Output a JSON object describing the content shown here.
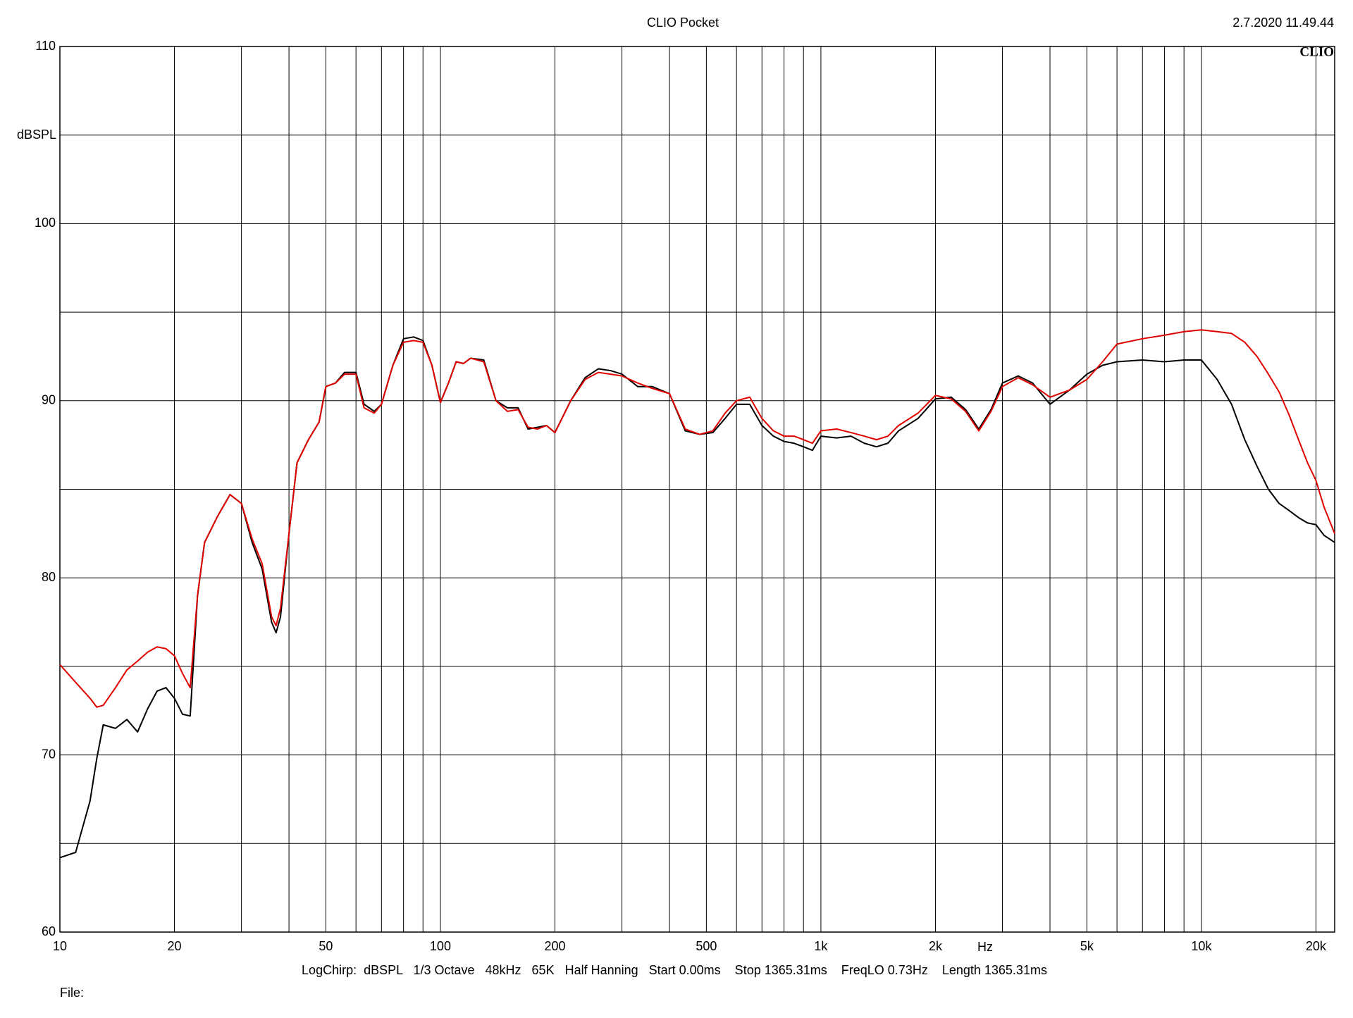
{
  "chart_data": {
    "type": "line",
    "title": "CLIO Pocket",
    "timestamp": "2.7.2020 11.49.44",
    "logo": "CLIO",
    "ylabel": "dBSPL",
    "xlabel": "Hz",
    "footer": "LogChirp:  dBSPL   1/3 Octave   48kHz   65K   Half Hanning   Start 0.00ms    Stop 1365.31ms    FreqLO 0.73Hz    Length 1365.31ms",
    "file_label": "File:",
    "xlog": true,
    "grid": true,
    "xlim": [
      10,
      22400
    ],
    "ylim": [
      60,
      110
    ],
    "xticks": [
      10,
      20,
      50,
      100,
      200,
      500,
      {
        "value": 1000,
        "label": "1k"
      },
      {
        "value": 2000,
        "label": "2k"
      },
      {
        "value": 5000,
        "label": "5k"
      },
      {
        "value": 10000,
        "label": "10k"
      },
      {
        "value": 20000,
        "label": "20k"
      }
    ],
    "xminor": [
      30,
      40,
      60,
      70,
      80,
      90,
      300,
      400,
      600,
      700,
      800,
      900,
      3000,
      4000,
      6000,
      7000,
      8000,
      9000
    ],
    "yticks": [
      60,
      70,
      80,
      90,
      100,
      110
    ],
    "yminor": [
      65,
      75,
      85,
      95,
      105
    ],
    "x": [
      10,
      11,
      12,
      12.5,
      13,
      14,
      15,
      16,
      17,
      18,
      19,
      20,
      21,
      22,
      23,
      24,
      26,
      28,
      30,
      32,
      34,
      36,
      37,
      38,
      40,
      42,
      45,
      48,
      50,
      53,
      56,
      60,
      63,
      67,
      70,
      75,
      80,
      85,
      90,
      95,
      100,
      105,
      110,
      115,
      120,
      130,
      140,
      150,
      160,
      170,
      180,
      190,
      200,
      220,
      240,
      260,
      280,
      300,
      330,
      360,
      400,
      440,
      480,
      520,
      560,
      600,
      650,
      700,
      750,
      800,
      850,
      900,
      950,
      1000,
      1100,
      1200,
      1300,
      1400,
      1500,
      1600,
      1800,
      2000,
      2200,
      2400,
      2600,
      2800,
      3000,
      3300,
      3600,
      4000,
      4500,
      5000,
      5500,
      6000,
      7000,
      8000,
      9000,
      10000,
      11000,
      12000,
      13000,
      14000,
      15000,
      16000,
      17000,
      18000,
      19000,
      20000,
      21000,
      22400
    ],
    "series": [
      {
        "color": "#000000",
        "values": [
          64.2,
          64.5,
          67.4,
          69.8,
          71.7,
          71.5,
          72.0,
          71.3,
          72.6,
          73.6,
          73.8,
          73.2,
          72.3,
          72.2,
          79,
          82,
          83.5,
          84.7,
          84.2,
          82,
          80.5,
          77.5,
          76.9,
          77.8,
          82.5,
          86.5,
          87.8,
          88.8,
          90.8,
          91.0,
          91.6,
          91.6,
          89.8,
          89.4,
          89.8,
          92,
          93.5,
          93.6,
          93.4,
          92,
          89.9,
          91,
          92.2,
          92.1,
          92.4,
          92.3,
          90,
          89.6,
          89.6,
          88.4,
          88.5,
          88.6,
          88.2,
          90,
          91.3,
          91.8,
          91.7,
          91.5,
          90.8,
          90.8,
          90.4,
          88.3,
          88.1,
          88.2,
          89,
          89.8,
          89.8,
          88.6,
          88,
          87.7,
          87.6,
          87.4,
          87.2,
          88.0,
          87.9,
          88.0,
          87.6,
          87.4,
          87.6,
          88.3,
          89,
          90.1,
          90.2,
          89.5,
          88.4,
          89.5,
          91,
          91.4,
          91,
          89.8,
          90.6,
          91.5,
          92,
          92.2,
          92.3,
          92.2,
          92.3,
          92.3,
          91.2,
          89.8,
          87.8,
          86.3,
          85,
          84.2,
          83.8,
          83.4,
          83.1,
          83.0,
          82.4,
          82.0
        ]
      },
      {
        "color": "#e00000",
        "values": [
          75.1,
          74.1,
          73.2,
          72.7,
          72.8,
          73.8,
          74.8,
          75.3,
          75.8,
          76.1,
          76.0,
          75.6,
          74.6,
          73.8,
          79,
          82,
          83.5,
          84.7,
          84.2,
          82.2,
          80.8,
          77.8,
          77.3,
          78.3,
          82.5,
          86.5,
          87.8,
          88.8,
          90.8,
          91.0,
          91.5,
          91.5,
          89.6,
          89.3,
          89.8,
          92,
          93.3,
          93.4,
          93.3,
          92,
          89.9,
          91,
          92.2,
          92.1,
          92.4,
          92.2,
          90,
          89.4,
          89.5,
          88.5,
          88.4,
          88.6,
          88.2,
          90,
          91.2,
          91.6,
          91.5,
          91.4,
          91.0,
          90.7,
          90.4,
          88.4,
          88.1,
          88.3,
          89.3,
          90.0,
          90.2,
          89.0,
          88.3,
          88.0,
          88.0,
          87.8,
          87.6,
          88.3,
          88.4,
          88.2,
          88.0,
          87.8,
          88.0,
          88.6,
          89.3,
          90.3,
          90.1,
          89.4,
          88.3,
          89.4,
          90.8,
          91.3,
          90.9,
          90.2,
          90.6,
          91.2,
          92.2,
          93.2,
          93.5,
          93.7,
          93.9,
          94.0,
          93.9,
          93.8,
          93.3,
          92.5,
          91.5,
          90.5,
          89.2,
          87.8,
          86.5,
          85.5,
          84.0,
          82.5
        ]
      }
    ]
  }
}
